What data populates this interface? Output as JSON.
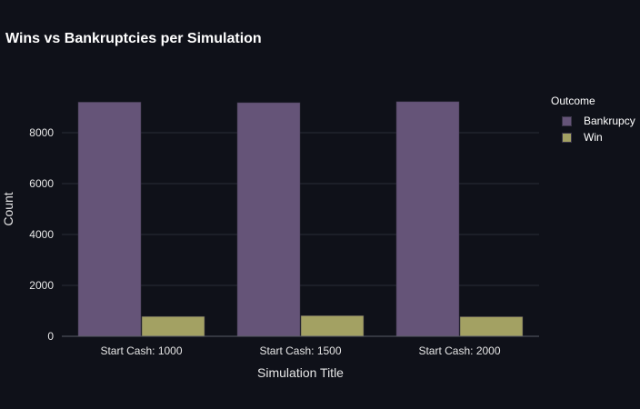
{
  "chart_data": {
    "type": "bar",
    "title": "Wins vs Bankruptcies per Simulation",
    "xlabel": "Simulation Title",
    "ylabel": "Count",
    "categories": [
      "Start Cash: 1000",
      "Start Cash: 1500",
      "Start Cash: 2000"
    ],
    "series": [
      {
        "name": "Bankrupcy",
        "values": [
          9200,
          9180,
          9220
        ],
        "color": "#655478"
      },
      {
        "name": "Win",
        "values": [
          780,
          810,
          770
        ],
        "color": "#a3a163"
      }
    ],
    "ylim": [
      0,
      10000
    ],
    "yticks": [
      0,
      2000,
      4000,
      6000,
      8000
    ],
    "grid": true,
    "legend": {
      "title": "Outcome",
      "placement": "top-right"
    },
    "background": "#0f1119",
    "gridColor": "#2a2d36"
  }
}
